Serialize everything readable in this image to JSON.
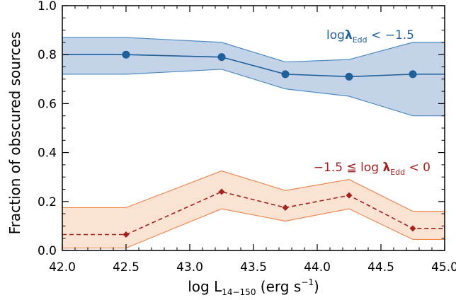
{
  "chart_data": {
    "type": "line",
    "title": "",
    "xlabel": "log L",
    "xlabel_sub": "14−150",
    "xlabel_unit": " (erg s",
    "xlabel_sup": "−1",
    "xlabel_close": ")",
    "ylabel": "Fraction of obscured sources",
    "xlim": [
      42.0,
      45.0
    ],
    "ylim": [
      0.0,
      1.0
    ],
    "x_ticks": [
      42.0,
      42.5,
      43.0,
      43.5,
      44.0,
      44.5,
      45.0
    ],
    "x_tick_labels": [
      "42.0",
      "42.5",
      "43.0",
      "43.5",
      "44.0",
      "44.5",
      "45.0"
    ],
    "y_ticks": [
      0.0,
      0.2,
      0.4,
      0.6,
      0.8,
      1.0
    ],
    "y_tick_labels": [
      "0.0",
      "0.2",
      "0.4",
      "0.6",
      "0.8",
      "1.0"
    ],
    "grid": false,
    "series": [
      {
        "label_parts": {
          "pre": "log",
          "lambda": "λ",
          "sub": "Edd",
          "post": " < −1.5"
        },
        "color": "#1f5f9a",
        "band_fill": "#c5d3e8",
        "band_edge": "#4f8cc4",
        "marker": "circle",
        "line_style": "solid",
        "x": [
          42.5,
          43.25,
          43.75,
          44.25,
          44.75
        ],
        "y": [
          0.8,
          0.79,
          0.72,
          0.71,
          0.72
        ],
        "band_x": [
          42.0,
          42.5,
          43.25,
          43.75,
          44.25,
          44.75,
          45.0
        ],
        "band_center": [
          0.8,
          0.8,
          0.79,
          0.72,
          0.71,
          0.72,
          0.72
        ],
        "band_lower": [
          0.72,
          0.72,
          0.74,
          0.66,
          0.63,
          0.55,
          0.55
        ],
        "band_upper": [
          0.87,
          0.87,
          0.85,
          0.77,
          0.78,
          0.85,
          0.85
        ]
      },
      {
        "label_parts": {
          "pre": "−1.5 ≦ log ",
          "lambda": "λ",
          "sub": "Edd",
          "post": " < 0"
        },
        "color": "#a3231f",
        "band_fill": "#fbe3d3",
        "band_edge": "#ef8a55",
        "marker": "diamond",
        "line_style": "dashed",
        "x": [
          42.5,
          43.25,
          43.75,
          44.25,
          44.75
        ],
        "y": [
          0.065,
          0.24,
          0.175,
          0.225,
          0.09
        ],
        "band_x": [
          42.0,
          42.5,
          43.25,
          43.75,
          44.25,
          44.75,
          45.0
        ],
        "band_center": [
          0.065,
          0.065,
          0.24,
          0.175,
          0.225,
          0.09,
          0.09
        ],
        "band_lower": [
          0.01,
          0.01,
          0.17,
          0.12,
          0.17,
          0.045,
          0.045
        ],
        "band_upper": [
          0.175,
          0.175,
          0.325,
          0.245,
          0.29,
          0.16,
          0.16
        ]
      }
    ]
  }
}
